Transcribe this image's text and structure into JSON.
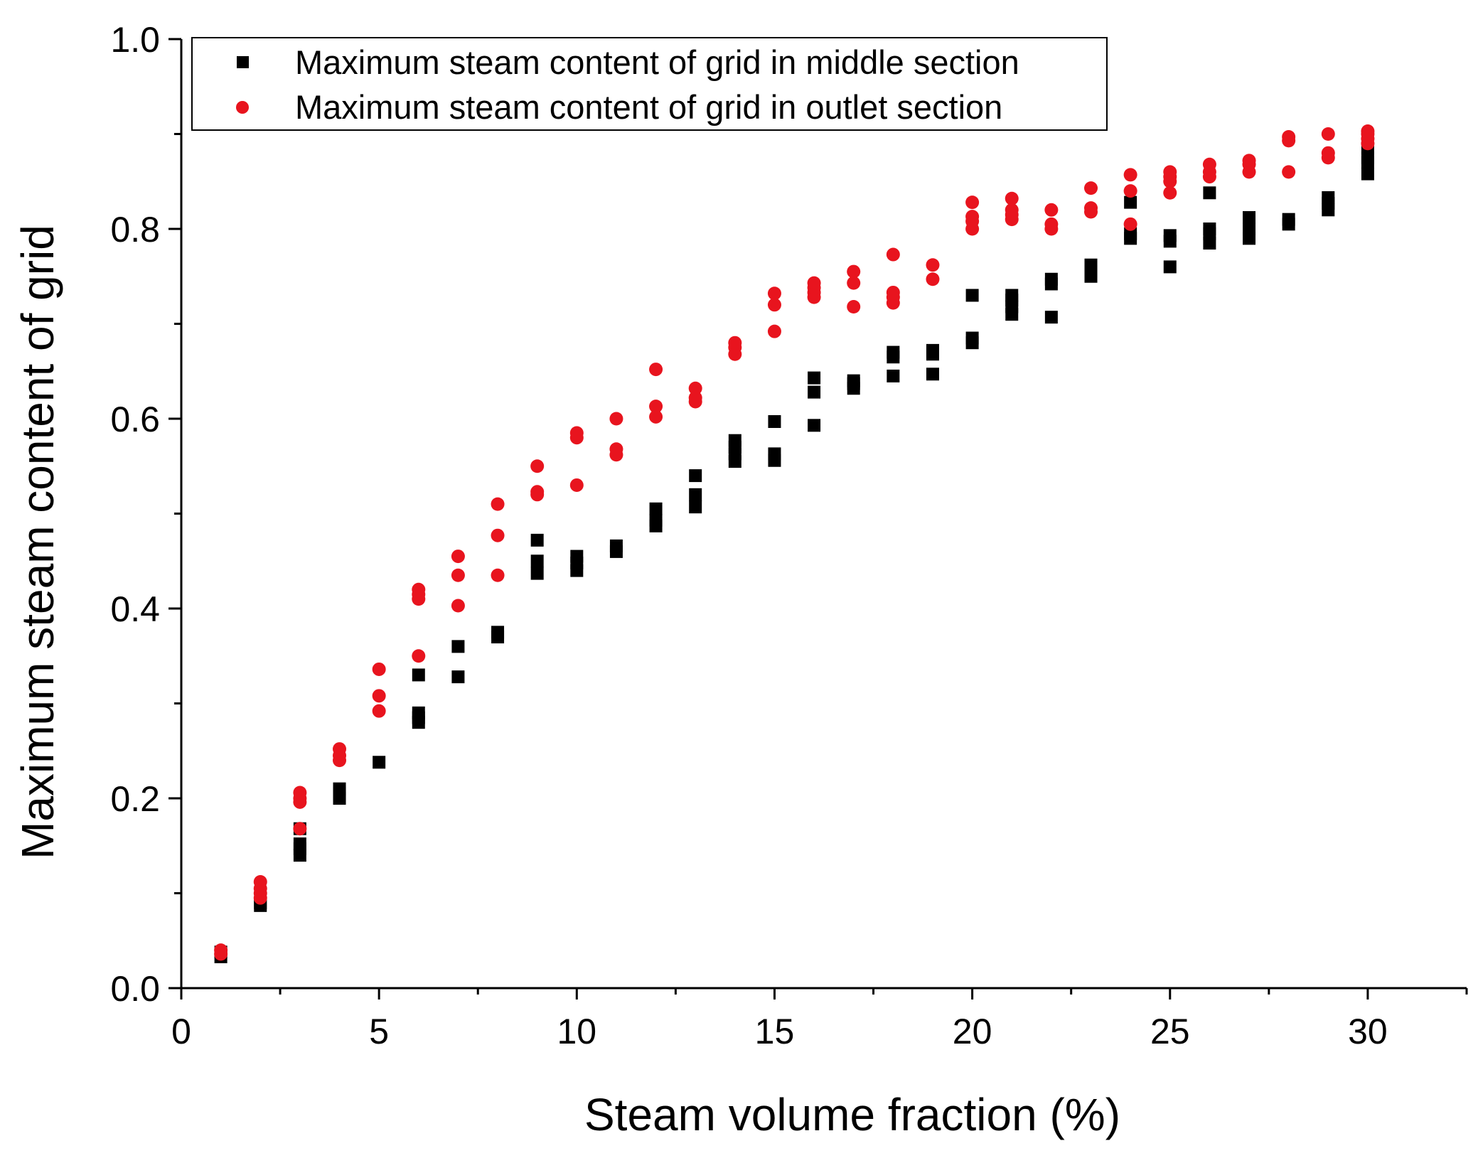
{
  "chart_data": {
    "type": "scatter",
    "title": "",
    "xlabel": "Steam volume fraction (%)",
    "ylabel": "Maximum steam content of grid",
    "xlim": [
      0,
      32.5
    ],
    "ylim": [
      0,
      1.0
    ],
    "xticks": [
      0,
      5,
      10,
      15,
      20,
      25,
      30
    ],
    "xtick_labels": [
      "0",
      "5",
      "10",
      "15",
      "20",
      "25",
      "30"
    ],
    "yticks": [
      0.0,
      0.2,
      0.4,
      0.6,
      0.8,
      1.0
    ],
    "ytick_labels": [
      "0.0",
      "0.2",
      "0.4",
      "0.6",
      "0.8",
      "1.0"
    ],
    "legend_position": "top-left",
    "series": [
      {
        "name": "Maximum steam content of grid in middle section",
        "marker": "square",
        "color": "#000000",
        "points": [
          [
            1,
            0.033
          ],
          [
            1,
            0.038
          ],
          [
            2,
            0.087
          ],
          [
            2,
            0.09
          ],
          [
            3,
            0.14
          ],
          [
            3,
            0.147
          ],
          [
            3,
            0.152
          ],
          [
            3,
            0.168
          ],
          [
            4,
            0.2
          ],
          [
            4,
            0.205
          ],
          [
            4,
            0.21
          ],
          [
            5,
            0.238
          ],
          [
            6,
            0.28
          ],
          [
            6,
            0.285
          ],
          [
            6,
            0.29
          ],
          [
            6,
            0.33
          ],
          [
            7,
            0.328
          ],
          [
            7,
            0.36
          ],
          [
            8,
            0.37
          ],
          [
            8,
            0.375
          ],
          [
            9,
            0.437
          ],
          [
            9,
            0.45
          ],
          [
            9,
            0.472
          ],
          [
            10,
            0.44
          ],
          [
            10,
            0.448
          ],
          [
            10,
            0.455
          ],
          [
            11,
            0.46
          ],
          [
            11,
            0.466
          ],
          [
            12,
            0.487
          ],
          [
            12,
            0.493
          ],
          [
            12,
            0.505
          ],
          [
            13,
            0.507
          ],
          [
            13,
            0.52
          ],
          [
            13,
            0.54
          ],
          [
            14,
            0.555
          ],
          [
            14,
            0.563
          ],
          [
            14,
            0.57
          ],
          [
            14,
            0.577
          ],
          [
            15,
            0.556
          ],
          [
            15,
            0.563
          ],
          [
            15,
            0.597
          ],
          [
            16,
            0.593
          ],
          [
            16,
            0.628
          ],
          [
            16,
            0.643
          ],
          [
            17,
            0.632
          ],
          [
            17,
            0.637
          ],
          [
            17,
            0.64
          ],
          [
            18,
            0.645
          ],
          [
            18,
            0.665
          ],
          [
            18,
            0.67
          ],
          [
            19,
            0.647
          ],
          [
            19,
            0.668
          ],
          [
            19,
            0.672
          ],
          [
            20,
            0.68
          ],
          [
            20,
            0.685
          ],
          [
            20,
            0.73
          ],
          [
            21,
            0.71
          ],
          [
            21,
            0.718
          ],
          [
            21,
            0.725
          ],
          [
            21,
            0.73
          ],
          [
            22,
            0.707
          ],
          [
            22,
            0.742
          ],
          [
            22,
            0.747
          ],
          [
            23,
            0.75
          ],
          [
            23,
            0.755
          ],
          [
            23,
            0.762
          ],
          [
            24,
            0.79
          ],
          [
            24,
            0.795
          ],
          [
            24,
            0.828
          ],
          [
            25,
            0.76
          ],
          [
            25,
            0.787
          ],
          [
            25,
            0.793
          ],
          [
            26,
            0.785
          ],
          [
            26,
            0.795
          ],
          [
            26,
            0.8
          ],
          [
            26,
            0.838
          ],
          [
            27,
            0.79
          ],
          [
            27,
            0.8
          ],
          [
            27,
            0.812
          ],
          [
            28,
            0.805
          ],
          [
            28,
            0.81
          ],
          [
            29,
            0.82
          ],
          [
            29,
            0.827
          ],
          [
            29,
            0.833
          ],
          [
            30,
            0.858
          ],
          [
            30,
            0.87
          ],
          [
            30,
            0.875
          ],
          [
            30,
            0.885
          ]
        ]
      },
      {
        "name": "Maximum steam content of grid in outlet section",
        "marker": "circle",
        "color": "#e8141e",
        "points": [
          [
            1,
            0.036
          ],
          [
            1,
            0.04
          ],
          [
            2,
            0.095
          ],
          [
            2,
            0.1
          ],
          [
            2,
            0.105
          ],
          [
            2,
            0.112
          ],
          [
            3,
            0.168
          ],
          [
            3,
            0.196
          ],
          [
            3,
            0.2
          ],
          [
            3,
            0.206
          ],
          [
            4,
            0.24
          ],
          [
            4,
            0.245
          ],
          [
            4,
            0.252
          ],
          [
            5,
            0.292
          ],
          [
            5,
            0.308
          ],
          [
            5,
            0.336
          ],
          [
            6,
            0.35
          ],
          [
            6,
            0.41
          ],
          [
            6,
            0.415
          ],
          [
            6,
            0.42
          ],
          [
            7,
            0.403
          ],
          [
            7,
            0.435
          ],
          [
            7,
            0.455
          ],
          [
            8,
            0.435
          ],
          [
            8,
            0.477
          ],
          [
            8,
            0.51
          ],
          [
            9,
            0.52
          ],
          [
            9,
            0.523
          ],
          [
            9,
            0.55
          ],
          [
            10,
            0.53
          ],
          [
            10,
            0.58
          ],
          [
            10,
            0.585
          ],
          [
            11,
            0.562
          ],
          [
            11,
            0.568
          ],
          [
            11,
            0.6
          ],
          [
            12,
            0.602
          ],
          [
            12,
            0.613
          ],
          [
            12,
            0.652
          ],
          [
            13,
            0.618
          ],
          [
            13,
            0.622
          ],
          [
            13,
            0.632
          ],
          [
            14,
            0.668
          ],
          [
            14,
            0.675
          ],
          [
            14,
            0.68
          ],
          [
            15,
            0.692
          ],
          [
            15,
            0.72
          ],
          [
            15,
            0.732
          ],
          [
            16,
            0.728
          ],
          [
            16,
            0.733
          ],
          [
            16,
            0.738
          ],
          [
            16,
            0.743
          ],
          [
            17,
            0.718
          ],
          [
            17,
            0.743
          ],
          [
            17,
            0.755
          ],
          [
            18,
            0.722
          ],
          [
            18,
            0.728
          ],
          [
            18,
            0.733
          ],
          [
            18,
            0.773
          ],
          [
            19,
            0.747
          ],
          [
            19,
            0.762
          ],
          [
            20,
            0.8
          ],
          [
            20,
            0.808
          ],
          [
            20,
            0.813
          ],
          [
            20,
            0.828
          ],
          [
            21,
            0.81
          ],
          [
            21,
            0.815
          ],
          [
            21,
            0.82
          ],
          [
            21,
            0.832
          ],
          [
            22,
            0.8
          ],
          [
            22,
            0.805
          ],
          [
            22,
            0.82
          ],
          [
            23,
            0.818
          ],
          [
            23,
            0.822
          ],
          [
            23,
            0.843
          ],
          [
            24,
            0.805
          ],
          [
            24,
            0.84
          ],
          [
            24,
            0.857
          ],
          [
            25,
            0.838
          ],
          [
            25,
            0.85
          ],
          [
            25,
            0.855
          ],
          [
            25,
            0.86
          ],
          [
            26,
            0.855
          ],
          [
            26,
            0.86
          ],
          [
            26,
            0.868
          ],
          [
            27,
            0.86
          ],
          [
            27,
            0.868
          ],
          [
            27,
            0.872
          ],
          [
            28,
            0.86
          ],
          [
            28,
            0.893
          ],
          [
            28,
            0.897
          ],
          [
            29,
            0.875
          ],
          [
            29,
            0.88
          ],
          [
            29,
            0.9
          ],
          [
            30,
            0.89
          ],
          [
            30,
            0.895
          ],
          [
            30,
            0.9
          ],
          [
            30,
            0.903
          ]
        ]
      }
    ]
  }
}
